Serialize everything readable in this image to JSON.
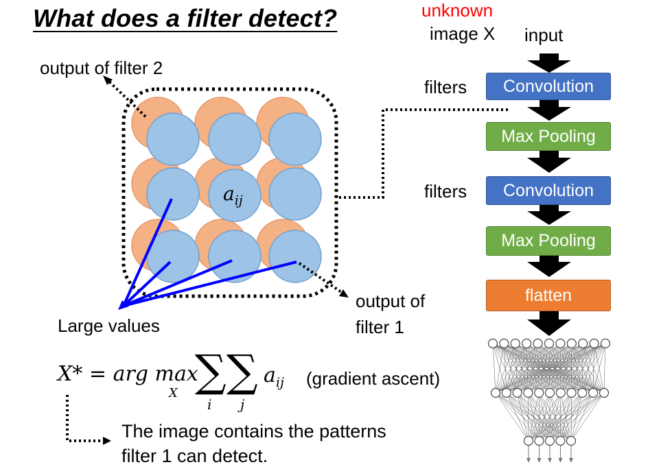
{
  "title": "What does a filter detect?",
  "left": {
    "output_filter2": "output of filter 2",
    "cell_label": "a",
    "cell_sub": "ij",
    "large_values": "Large values",
    "output_filter1_line1": "output of",
    "output_filter1_line2": "filter 1"
  },
  "formula": {
    "lhs": "X* = arg max",
    "max_sub": "X",
    "sum_i": "i",
    "sum_j": "j",
    "term": "a",
    "term_sub": "ij",
    "note": "(gradient ascent)"
  },
  "conclusion": {
    "line1": "The image contains the patterns",
    "line2": "filter 1 can detect."
  },
  "pipeline": {
    "unknown": "unknown",
    "image_x": "image X",
    "input": "input",
    "filters1": "filters",
    "filters2": "filters",
    "conv1": "Convolution",
    "pool1": "Max Pooling",
    "conv2": "Convolution",
    "pool2": "Max Pooling",
    "flatten": "flatten"
  },
  "colors": {
    "unknown": "#ff0000",
    "convolution": "#4472c4",
    "pooling": "#70ad47",
    "flatten": "#ed7d31",
    "filter1_circle": "#9dc3e6",
    "filter2_circle": "#f4b183",
    "rays": "#0000ff"
  }
}
